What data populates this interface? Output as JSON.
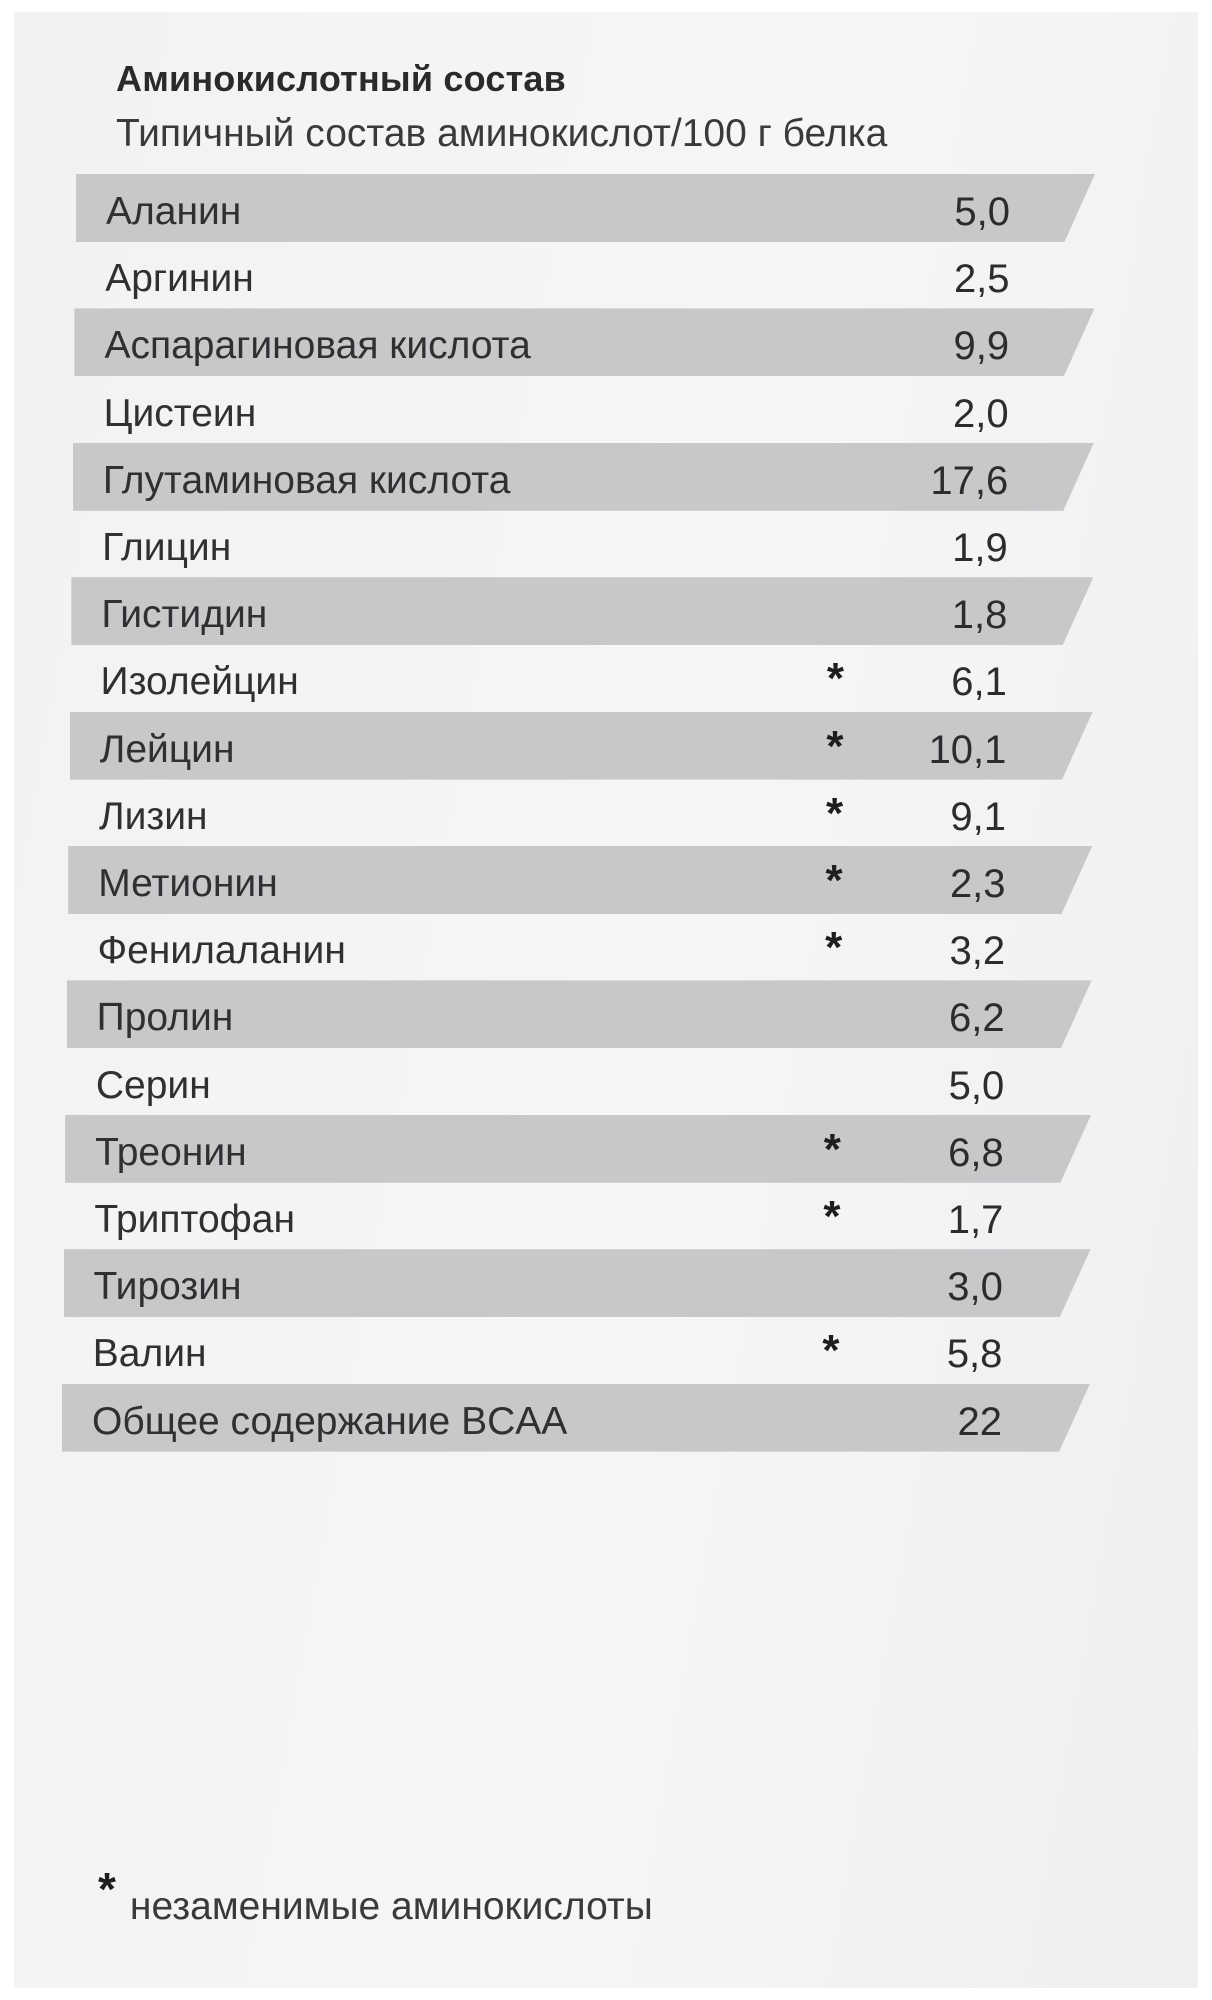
{
  "header": {
    "title": "Аминокислотный состав",
    "subtitle": "Типичный состав аминокислот/100 г белка"
  },
  "rows": [
    {
      "name": "Аланин",
      "essential": false,
      "value": "5,0",
      "shaded": true
    },
    {
      "name": "Аргинин",
      "essential": false,
      "value": "2,5",
      "shaded": false
    },
    {
      "name": "Аспарагиновая кислота",
      "essential": false,
      "value": "9,9",
      "shaded": true
    },
    {
      "name": "Цистеин",
      "essential": false,
      "value": "2,0",
      "shaded": false
    },
    {
      "name": "Глутаминовая кислота",
      "essential": false,
      "value": "17,6",
      "shaded": true
    },
    {
      "name": "Глицин",
      "essential": false,
      "value": "1,9",
      "shaded": false
    },
    {
      "name": "Гистидин",
      "essential": false,
      "value": "1,8",
      "shaded": true
    },
    {
      "name": "Изолейцин",
      "essential": true,
      "value": "6,1",
      "shaded": false
    },
    {
      "name": "Лейцин",
      "essential": true,
      "value": "10,1",
      "shaded": true
    },
    {
      "name": "Лизин",
      "essential": true,
      "value": "9,1",
      "shaded": false
    },
    {
      "name": "Метионин",
      "essential": true,
      "value": "2,3",
      "shaded": true
    },
    {
      "name": "Фенилаланин",
      "essential": true,
      "value": "3,2",
      "shaded": false
    },
    {
      "name": "Пролин",
      "essential": false,
      "value": "6,2",
      "shaded": true
    },
    {
      "name": "Серин",
      "essential": false,
      "value": "5,0",
      "shaded": false
    },
    {
      "name": "Треонин",
      "essential": true,
      "value": "6,8",
      "shaded": true
    },
    {
      "name": "Триптофан",
      "essential": true,
      "value": "1,7",
      "shaded": false
    },
    {
      "name": "Тирозин",
      "essential": false,
      "value": "3,0",
      "shaded": true
    },
    {
      "name": "Валин",
      "essential": true,
      "value": "5,8",
      "shaded": false
    },
    {
      "name": "Общее содержание BCAA",
      "essential": false,
      "value": "22",
      "shaded": true
    }
  ],
  "essential_mark": "*",
  "footnote": {
    "mark": "*",
    "text": "незаменимые аминокислоты"
  },
  "colors": {
    "row_shade": "#c8c8cb",
    "text": "#303032",
    "background": "#f4f4f5"
  }
}
